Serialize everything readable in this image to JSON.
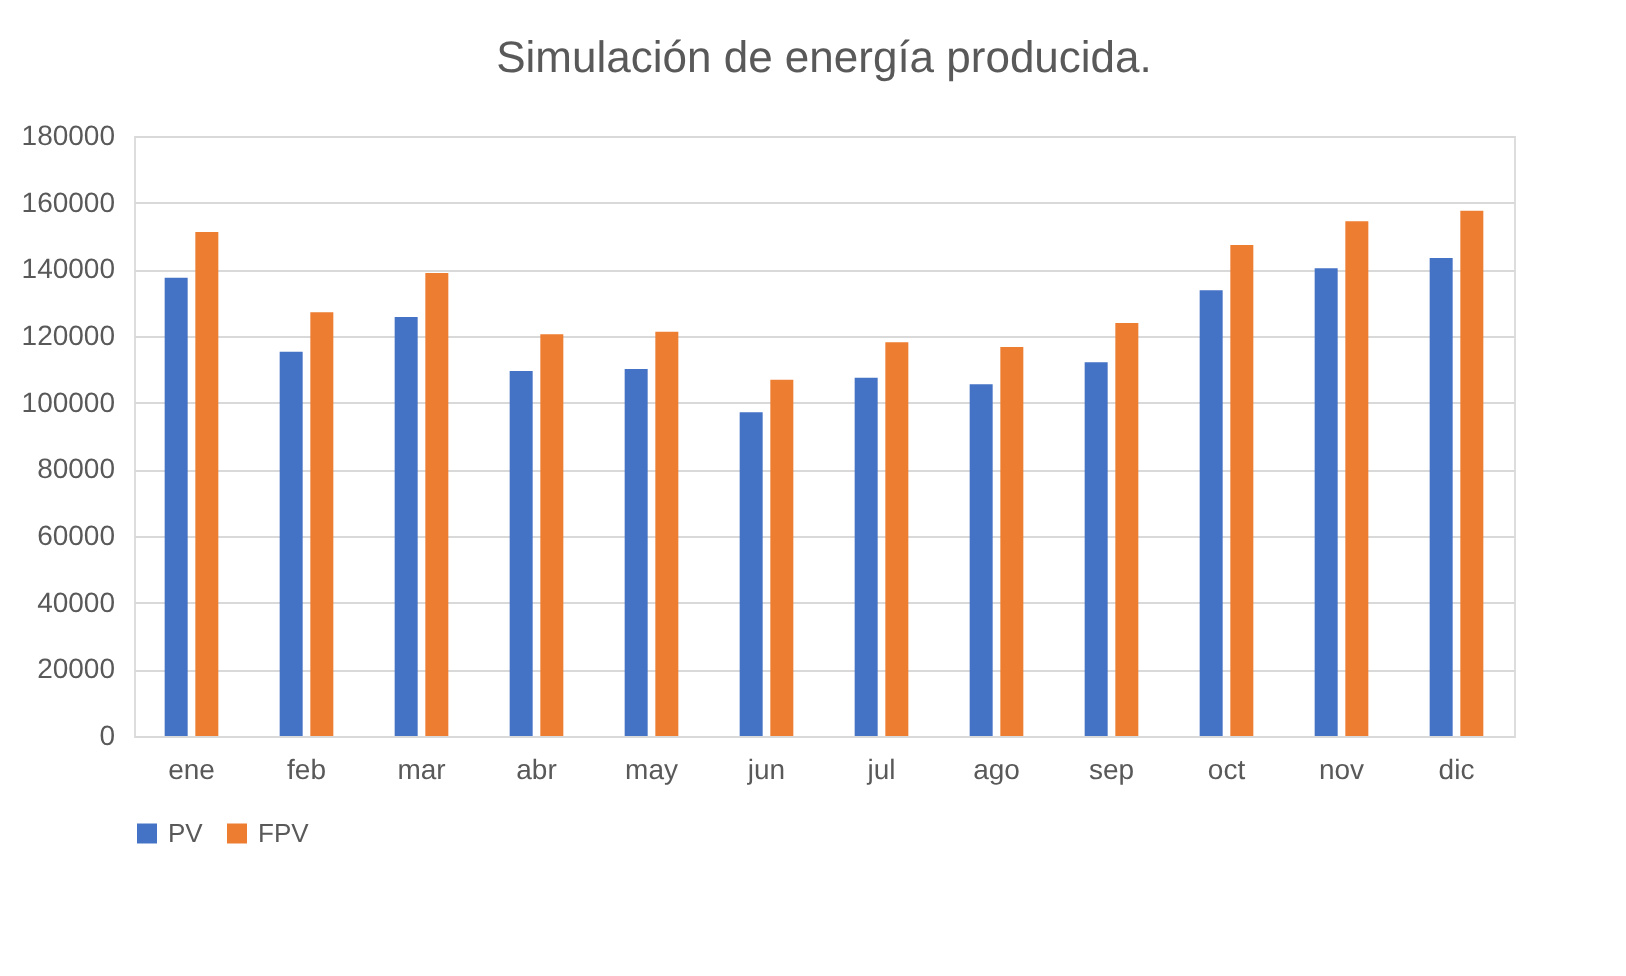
{
  "chart_data": {
    "type": "bar",
    "title": "Simulación de energía producida.",
    "categories": [
      "ene",
      "feb",
      "mar",
      "abr",
      "may",
      "jun",
      "jul",
      "ago",
      "sep",
      "oct",
      "nov",
      "dic"
    ],
    "series": [
      {
        "name": "PV",
        "color": "#4472c4",
        "values": [
          137500,
          115300,
          125700,
          109500,
          110100,
          97100,
          107500,
          105500,
          112100,
          133700,
          140300,
          143400
        ]
      },
      {
        "name": "FPV",
        "color": "#ed7d31",
        "values": [
          151200,
          127100,
          138900,
          120500,
          121300,
          106900,
          118100,
          116700,
          123900,
          147300,
          154400,
          157600
        ]
      }
    ],
    "ylim": [
      0,
      180000
    ],
    "yticks": [
      0,
      20000,
      40000,
      60000,
      80000,
      100000,
      120000,
      140000,
      160000,
      180000
    ],
    "grid": "y",
    "legend": "bottom"
  }
}
